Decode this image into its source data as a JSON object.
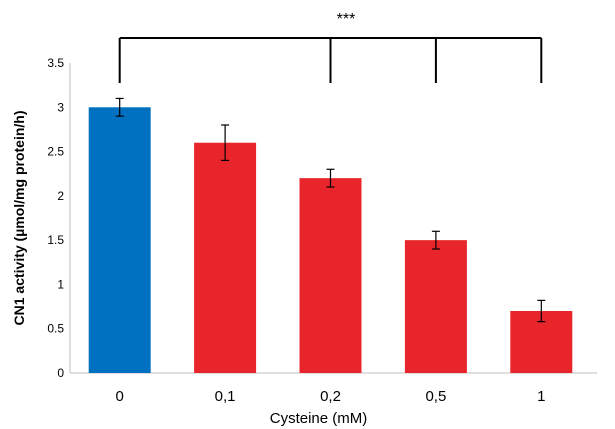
{
  "chart_data": {
    "type": "bar",
    "categories": [
      "0",
      "0,1",
      "0,2",
      "0,5",
      "1"
    ],
    "values": [
      3.0,
      2.6,
      2.2,
      1.5,
      0.7
    ],
    "errors": [
      0.1,
      0.2,
      0.1,
      0.1,
      0.12
    ],
    "bar_colors": [
      "#0070C0",
      "#E8252A",
      "#E8252A",
      "#E8252A",
      "#E8252A"
    ],
    "xlabel": "Cysteine (mM)",
    "ylabel": "CN1 activity (µmol/mg protein/h)",
    "ylim": [
      0,
      3.5
    ],
    "yticks": [
      "0",
      "0.5",
      "1",
      "1.5",
      "2",
      "2.5",
      "3",
      "3.5"
    ],
    "grid": false,
    "significance": {
      "label": "***",
      "from": "0",
      "to": [
        "0,2",
        "0,5",
        "1"
      ]
    }
  }
}
